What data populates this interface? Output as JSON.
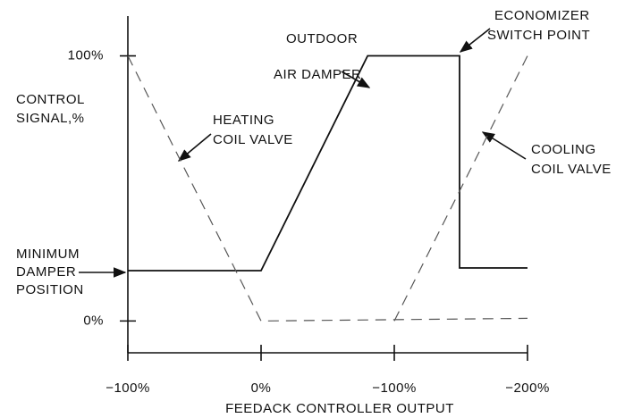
{
  "chart_data": {
    "type": "line",
    "x_label": "FEEDACK CONTROLLER OUTPUT",
    "y_label_lines": [
      "CONTROL",
      "SIGNAL,%"
    ],
    "xlim": [
      -100,
      200
    ],
    "ylim": [
      -12,
      115
    ],
    "xticks": [
      {
        "value": -100,
        "label": "−100%"
      },
      {
        "value": 0,
        "label": "0%"
      },
      {
        "value": 100,
        "label": "−100%"
      },
      {
        "value": 200,
        "label": "−200%"
      }
    ],
    "yticks": [
      {
        "value": 0,
        "label": "0%"
      },
      {
        "value": 100,
        "label": "100%"
      }
    ],
    "series": [
      {
        "color": "#111111",
        "dash": false,
        "x": [
          -100,
          0,
          80,
          149,
          149,
          200
        ],
        "values": [
          19,
          19,
          100,
          100,
          20,
          20
        ]
      },
      {
        "color": "#555555",
        "dash": true,
        "x": [
          -100,
          0,
          200
        ],
        "values": [
          100,
          0,
          1
        ]
      },
      {
        "color": "#555555",
        "dash": true,
        "x": [
          100,
          200
        ],
        "values": [
          0,
          100
        ]
      }
    ],
    "annotations": [
      {
        "lines": [
          "HEATING",
          "COIL VALVE"
        ]
      },
      {
        "lines": [
          "OUTDOOR",
          "AIR DAMPER"
        ]
      },
      {
        "lines": [
          "ECONOMIZER",
          "SWITCH POINT"
        ]
      },
      {
        "lines": [
          "COOLING",
          "COIL VALVE"
        ]
      },
      {
        "lines": [
          "MINIMUM",
          "DAMPER",
          "POSITION"
        ]
      }
    ]
  }
}
